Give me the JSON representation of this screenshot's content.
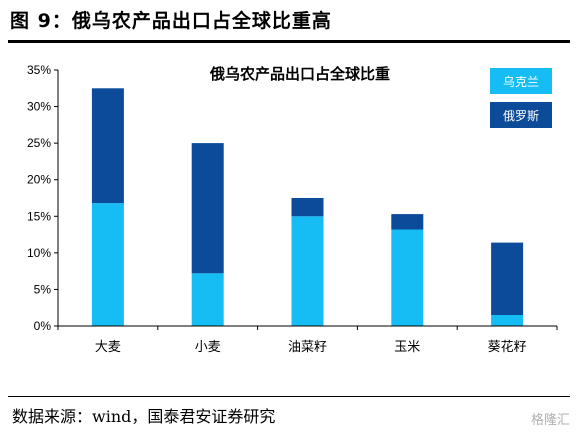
{
  "figure": {
    "title": "图 9：俄乌农产品出口占全球比重高",
    "source": "数据来源：wind，国泰君安证券研究",
    "watermark": "格隆汇"
  },
  "colors": {
    "ukraine": "#16BDF5",
    "russia": "#0C4A9A",
    "axis": "#000000"
  },
  "chart_data": {
    "type": "bar",
    "stacked": true,
    "title": "俄乌农产品出口占全球比重",
    "categories": [
      "大麦",
      "小麦",
      "油菜籽",
      "玉米",
      "葵花籽"
    ],
    "series": [
      {
        "name": "乌克兰",
        "values": [
          16.8,
          7.2,
          15.0,
          13.2,
          1.5
        ]
      },
      {
        "name": "俄罗斯",
        "values": [
          15.7,
          17.8,
          2.5,
          2.1,
          9.9
        ]
      }
    ],
    "ylim": [
      0,
      35
    ],
    "yticks": [
      0,
      5,
      10,
      15,
      20,
      25,
      30,
      35
    ],
    "ytick_labels": [
      "0%",
      "5%",
      "10%",
      "15%",
      "20%",
      "25%",
      "30%",
      "35%"
    ],
    "legend_position": "top-right",
    "grid": false,
    "xlabel": "",
    "ylabel": ""
  }
}
